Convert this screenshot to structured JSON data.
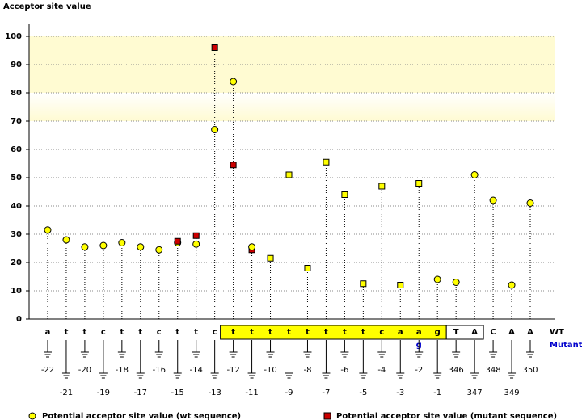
{
  "chart_data": {
    "type": "lollipop",
    "y_label": "Acceptor site value",
    "categories": [
      "a",
      "t",
      "t",
      "c",
      "t",
      "t",
      "c",
      "t",
      "t",
      "c",
      "t",
      "t",
      "t",
      "t",
      "t",
      "t",
      "t",
      "t",
      "c",
      "a",
      "a",
      "g",
      "T",
      "A",
      "C",
      "A",
      "A"
    ],
    "positions": [
      -22,
      -21,
      -20,
      -19,
      -18,
      -17,
      -16,
      -15,
      -14,
      -13,
      -12,
      -11,
      -10,
      -9,
      -8,
      -7,
      -6,
      -5,
      -4,
      -3,
      -2,
      -1,
      346,
      347,
      348,
      349,
      350
    ],
    "mutant_letters": [
      null,
      null,
      null,
      null,
      null,
      null,
      null,
      null,
      null,
      null,
      null,
      null,
      null,
      null,
      null,
      null,
      null,
      null,
      null,
      null,
      "g",
      null,
      null,
      null,
      null,
      null,
      null
    ],
    "wt_row_label": "WT",
    "mutant_row_label": "Mutant",
    "series": [
      {
        "name": "Potential acceptor site value (wt sequence)",
        "color": "#ffff00",
        "values": [
          31.5,
          28,
          25.5,
          26,
          27,
          25.5,
          24.5,
          27,
          26.5,
          67,
          84,
          25.5,
          21.5,
          51,
          18,
          55.5,
          44,
          12.5,
          47,
          12,
          48,
          14,
          13,
          51,
          42,
          12,
          41
        ]
      },
      {
        "name": "Potential acceptor site value (mutant sequence)",
        "color": "#cc0000",
        "values": [
          null,
          null,
          null,
          null,
          null,
          null,
          null,
          27.5,
          29.5,
          96,
          54.5,
          24.5,
          21.5,
          51,
          18,
          55.5,
          44,
          12.5,
          47,
          12,
          48,
          null,
          null,
          null,
          null,
          null,
          null
        ]
      }
    ],
    "ylim": [
      0,
      100
    ],
    "yticks": [
      0,
      10,
      20,
      30,
      40,
      50,
      60,
      70,
      80,
      90,
      100
    ],
    "grid": true,
    "band": [
      70,
      100
    ],
    "band_color": "#fffbd2",
    "legend": "bottom"
  }
}
